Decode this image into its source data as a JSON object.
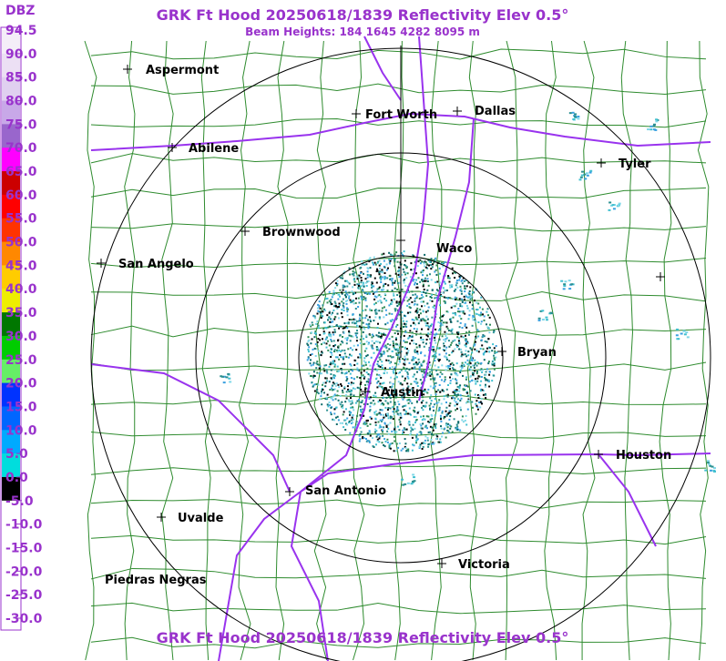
{
  "header": {
    "title": "GRK Ft Hood 20250618/1839 Reflectivity Elev 0.5°",
    "subtitle": "Beam Heights: 184 1645 4282 8095 m"
  },
  "footer": {
    "title": "GRK Ft Hood 20250618/1839 Reflectivity Elev 0.5°"
  },
  "colorbar": {
    "unit": "DBZ",
    "labels": [
      "94.5",
      "90.0",
      "85.0",
      "80.0",
      "75.0",
      "70.0",
      "65.0",
      "60.0",
      "55.0",
      "50.0",
      "45.0",
      "40.0",
      "35.0",
      "30.0",
      "25.0",
      "20.0",
      "15.0",
      "10.0",
      "5.0",
      "0.0",
      "-5.0",
      "-10.0",
      "-15.0",
      "-20.0",
      "-25.0",
      "-30.0"
    ]
  },
  "cities": [
    "Aspermont",
    "Fort Worth",
    "Dallas",
    "Abilene",
    "Tyler",
    "Brownwood",
    "Waco",
    "San Angelo",
    "Bryan",
    "Austin",
    "Houston",
    "San Antonio",
    "Uvalde",
    "Victoria",
    "Piedras Negras"
  ]
}
